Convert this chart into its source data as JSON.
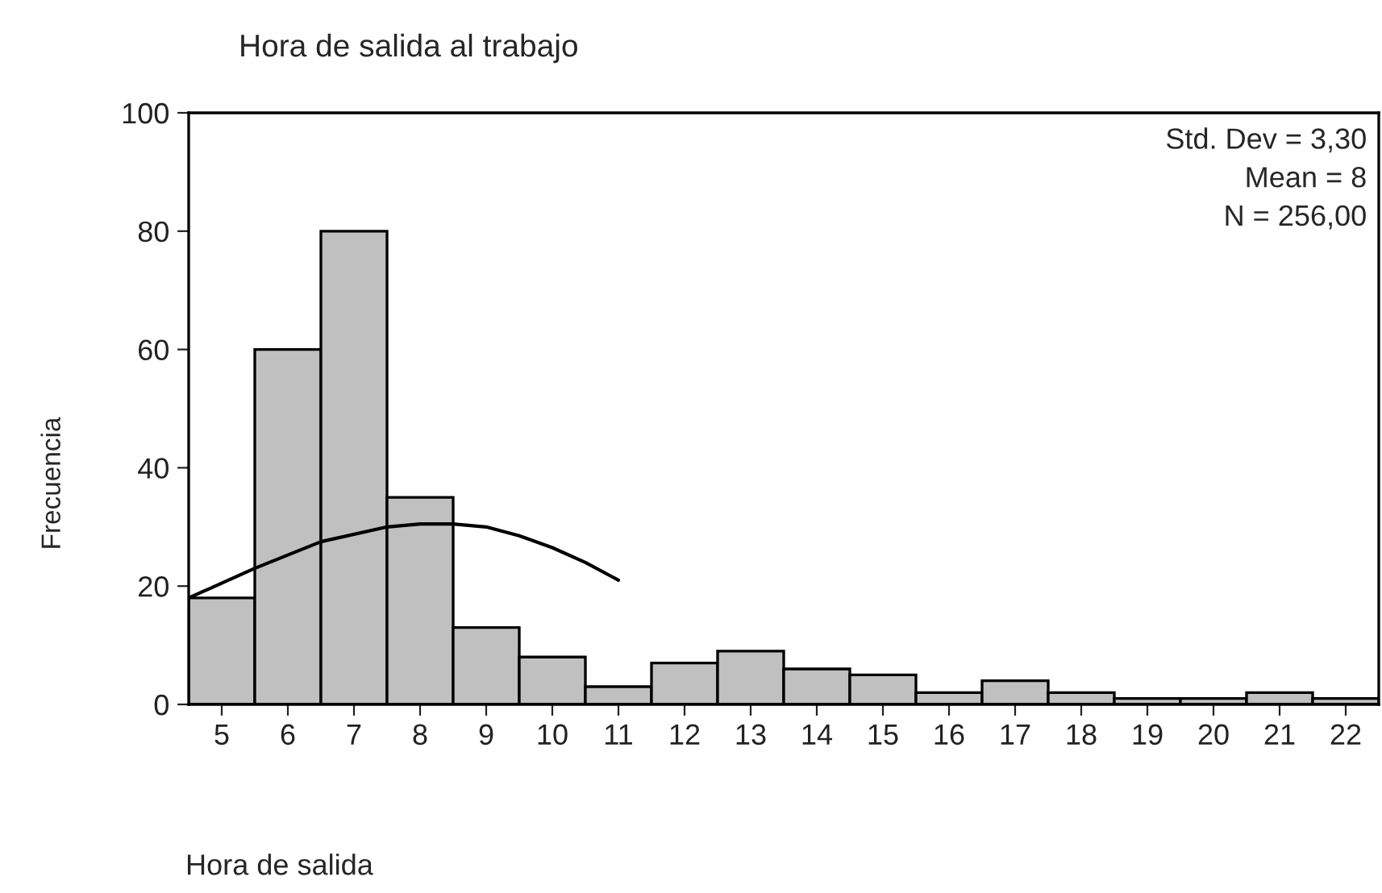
{
  "chart_data": {
    "type": "histogram",
    "title": "Hora de salida al trabajo",
    "xlabel": "Hora de salida",
    "ylabel": "Frecuencia",
    "bins": [
      4.5,
      5.5,
      6.5,
      7.5,
      8.5,
      9.5,
      10.5,
      11.5,
      12.5,
      13.5,
      14.5,
      15.5,
      16.5,
      17.5,
      18.5,
      19.5,
      20.5,
      21.5,
      22.5
    ],
    "values": [
      18,
      60,
      80,
      35,
      13,
      8,
      3,
      7,
      9,
      6,
      5,
      2,
      4,
      2,
      1,
      1,
      2,
      1
    ],
    "color": "#c0c0c0",
    "series": [
      {
        "type": "line",
        "color": "#000000",
        "x": [
          4.5,
          5.5,
          6.5,
          7.5,
          8.0,
          8.5,
          9.0,
          9.5,
          10.0,
          10.5,
          11.0
        ],
        "values": [
          18,
          23,
          27.5,
          30,
          30.5,
          30.5,
          30,
          28.5,
          26.5,
          24,
          21
        ]
      }
    ],
    "xlim": [
      4.5,
      22.5
    ],
    "xticks": [
      5,
      6,
      7,
      8,
      9,
      10,
      11,
      12,
      13,
      14,
      15,
      16,
      17,
      18,
      19,
      20,
      21,
      22
    ],
    "ylim": [
      0,
      100
    ],
    "yticks": [
      0,
      20,
      40,
      60,
      80,
      100
    ],
    "annotations": [
      "Std. Dev = 3,30",
      "Mean = 8",
      "N = 256,00"
    ],
    "grid": false,
    "legend": false
  }
}
